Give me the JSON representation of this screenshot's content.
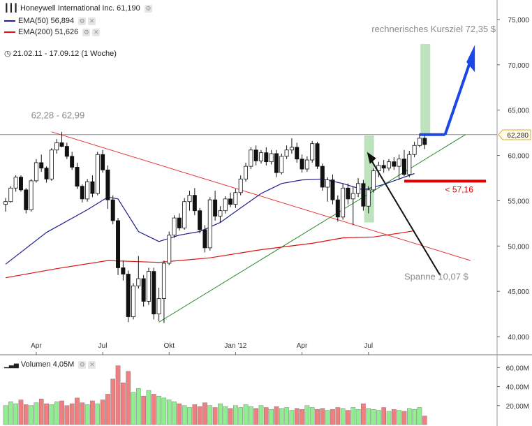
{
  "header": {
    "title": "Honeywell International Inc.",
    "last": "61,190",
    "ema50_label": "EMA(50)",
    "ema50_value": "56,894",
    "ema200_label": "EMA(200)",
    "ema200_value": "51,626",
    "range": "21.02.11 - 17.09.12 (1 Woche)",
    "volume_label": "Volumen",
    "volume_value": "4,05M"
  },
  "colors": {
    "ema50": "#1f1f8f",
    "ema200": "#dd1111",
    "trend_down": "#e83030",
    "trend_up": "#2a8a2a",
    "target_box": "#a8d8a8",
    "arrow": "#1b47e6",
    "support": "#e00000",
    "vol_up": "#90ee90",
    "vol_down": "#f08080"
  },
  "annotations": {
    "range_note": "62,28 - 62,99",
    "target_note": "rechnerisches Kursziel 72,35 $",
    "support_note": "< 57,16",
    "span_note": "Spanne 10,07 $",
    "last_price_tag": "62,280"
  },
  "chart_data": {
    "type": "candlestick",
    "ylim": [
      38,
      77
    ],
    "y_ticks": [
      "75,000",
      "70,000",
      "65,000",
      "60,000",
      "55,000",
      "50,000",
      "45,000",
      "40,000"
    ],
    "y_tick_values": [
      75,
      70,
      65,
      60,
      55,
      50,
      45,
      40
    ],
    "x_ticks": [
      "Apr",
      "Jul",
      "Okt",
      "Jan '12",
      "Apr",
      "Jul"
    ],
    "x_tick_weeks": [
      6,
      19,
      32,
      45,
      58,
      71
    ],
    "candles": [
      [
        54.6,
        55.3,
        53.8,
        54.9
      ],
      [
        54.9,
        56.6,
        54.8,
        56.4
      ],
      [
        56.4,
        57.8,
        56.0,
        57.6
      ],
      [
        57.6,
        57.8,
        56.0,
        56.2
      ],
      [
        56.2,
        56.4,
        53.6,
        54.0
      ],
      [
        54.0,
        57.4,
        53.8,
        57.2
      ],
      [
        57.2,
        59.6,
        57.0,
        59.2
      ],
      [
        59.2,
        60.1,
        58.2,
        58.6
      ],
      [
        58.6,
        58.8,
        57.0,
        57.4
      ],
      [
        57.4,
        60.8,
        57.2,
        60.6
      ],
      [
        60.6,
        61.8,
        60.2,
        61.4
      ],
      [
        61.4,
        62.6,
        60.9,
        61.0
      ],
      [
        61.0,
        61.4,
        59.6,
        59.9
      ],
      [
        59.9,
        60.4,
        58.4,
        58.7
      ],
      [
        58.7,
        59.2,
        56.3,
        56.6
      ],
      [
        56.6,
        56.8,
        54.8,
        55.2
      ],
      [
        55.2,
        57.4,
        54.9,
        57.1
      ],
      [
        57.1,
        57.8,
        55.4,
        55.8
      ],
      [
        55.8,
        60.4,
        55.6,
        60.1
      ],
      [
        60.1,
        60.6,
        58.1,
        58.4
      ],
      [
        58.4,
        58.9,
        54.1,
        55.1
      ],
      [
        55.1,
        55.6,
        52.4,
        52.8
      ],
      [
        52.8,
        53.1,
        46.8,
        47.6
      ],
      [
        47.6,
        48.4,
        46.2,
        46.9
      ],
      [
        46.9,
        47.3,
        41.6,
        42.2
      ],
      [
        42.2,
        45.9,
        41.9,
        45.6
      ],
      [
        45.6,
        48.9,
        45.3,
        46.4
      ],
      [
        46.4,
        46.8,
        43.3,
        43.9
      ],
      [
        43.9,
        47.6,
        43.5,
        47.2
      ],
      [
        47.2,
        47.6,
        41.9,
        42.5
      ],
      [
        42.5,
        45.4,
        41.7,
        44.2
      ],
      [
        44.2,
        48.4,
        41.5,
        48.1
      ],
      [
        48.1,
        51.6,
        47.9,
        51.2
      ],
      [
        51.2,
        53.4,
        50.9,
        53.1
      ],
      [
        53.1,
        53.6,
        51.7,
        52.0
      ],
      [
        52.0,
        55.3,
        51.8,
        54.9
      ],
      [
        54.9,
        56.1,
        53.9,
        55.6
      ],
      [
        55.6,
        56.4,
        53.4,
        53.9
      ],
      [
        53.9,
        54.2,
        51.4,
        51.8
      ],
      [
        51.8,
        52.3,
        49.3,
        49.8
      ],
      [
        49.8,
        55.4,
        49.5,
        55.1
      ],
      [
        55.1,
        56.1,
        52.8,
        53.3
      ],
      [
        53.3,
        54.4,
        52.6,
        53.9
      ],
      [
        53.9,
        55.5,
        53.6,
        55.2
      ],
      [
        55.2,
        55.9,
        54.3,
        54.6
      ],
      [
        54.6,
        56.3,
        54.2,
        55.9
      ],
      [
        55.9,
        57.8,
        55.6,
        57.4
      ],
      [
        57.4,
        59.2,
        57.1,
        58.8
      ],
      [
        58.8,
        60.9,
        58.5,
        60.6
      ],
      [
        60.6,
        61.1,
        58.9,
        59.4
      ],
      [
        59.4,
        60.6,
        59.1,
        60.3
      ],
      [
        60.3,
        60.9,
        58.9,
        59.3
      ],
      [
        59.3,
        60.6,
        59.0,
        60.2
      ],
      [
        60.2,
        60.6,
        57.6,
        58.1
      ],
      [
        58.1,
        60.2,
        57.9,
        59.9
      ],
      [
        59.9,
        61.1,
        59.6,
        60.6
      ],
      [
        60.6,
        61.9,
        60.2,
        60.9
      ],
      [
        60.9,
        61.4,
        59.2,
        59.6
      ],
      [
        59.6,
        60.1,
        58.1,
        58.5
      ],
      [
        58.5,
        59.9,
        58.2,
        59.5
      ],
      [
        59.5,
        61.6,
        59.2,
        61.3
      ],
      [
        61.3,
        61.5,
        58.5,
        58.8
      ],
      [
        58.8,
        59.1,
        56.1,
        56.5
      ],
      [
        56.5,
        57.6,
        54.9,
        57.3
      ],
      [
        57.3,
        57.9,
        54.6,
        55.1
      ],
      [
        55.1,
        55.6,
        52.7,
        53.2
      ],
      [
        53.2,
        56.9,
        52.9,
        56.4
      ],
      [
        56.4,
        56.9,
        54.6,
        55.2
      ],
      [
        55.2,
        56.6,
        52.3,
        55.8
      ],
      [
        55.8,
        57.5,
        55.4,
        56.9
      ],
      [
        56.9,
        57.3,
        53.9,
        54.4
      ],
      [
        54.4,
        56.6,
        53.6,
        56.2
      ],
      [
        56.2,
        58.6,
        55.9,
        58.3
      ],
      [
        58.3,
        59.3,
        57.6,
        58.9
      ],
      [
        58.9,
        59.5,
        58.1,
        58.6
      ],
      [
        58.6,
        59.6,
        58.3,
        59.3
      ],
      [
        59.3,
        59.8,
        58.4,
        58.8
      ],
      [
        58.8,
        60.1,
        57.3,
        59.6
      ],
      [
        59.6,
        60.6,
        57.7,
        57.9
      ],
      [
        57.9,
        60.5,
        57.6,
        60.1
      ],
      [
        60.1,
        61.5,
        59.8,
        61.1
      ],
      [
        61.1,
        62.4,
        60.9,
        61.9
      ],
      [
        61.9,
        62.3,
        60.7,
        61.2
      ]
    ],
    "ema50": [
      [
        0,
        48.0
      ],
      [
        8,
        51.5
      ],
      [
        16,
        54.0
      ],
      [
        20,
        55.4
      ],
      [
        22,
        55.2
      ],
      [
        26,
        51.6
      ],
      [
        30,
        50.5
      ],
      [
        34,
        51.2
      ],
      [
        38,
        51.6
      ],
      [
        42,
        52.6
      ],
      [
        46,
        54.2
      ],
      [
        50,
        55.8
      ],
      [
        54,
        56.9
      ],
      [
        58,
        57.3
      ],
      [
        62,
        57.4
      ],
      [
        66,
        56.9
      ],
      [
        70,
        56.2
      ],
      [
        74,
        56.8
      ],
      [
        80,
        58.0
      ]
    ],
    "ema200": [
      [
        0,
        46.5
      ],
      [
        10,
        47.5
      ],
      [
        20,
        48.4
      ],
      [
        30,
        48.2
      ],
      [
        40,
        48.7
      ],
      [
        50,
        49.6
      ],
      [
        60,
        50.3
      ],
      [
        66,
        50.9
      ],
      [
        72,
        51.0
      ],
      [
        78,
        51.5
      ],
      [
        80,
        51.7
      ]
    ],
    "trend_down": [
      [
        9,
        62.6
      ],
      [
        91,
        48.4
      ]
    ],
    "trend_up": [
      [
        30,
        41.6
      ],
      [
        90,
        62.3
      ]
    ],
    "resistance": 62.3,
    "target_boxes": [
      [
        71,
        52.6,
        62.2
      ],
      [
        82,
        62.3,
        72.3
      ]
    ],
    "volume": {
      "ylim": [
        0,
        72
      ],
      "y_ticks": [
        "60,00M",
        "40,00M",
        "20,00M"
      ],
      "y_tick_values": [
        60,
        40,
        20
      ],
      "values": [
        20,
        24,
        22,
        26,
        21,
        20,
        23,
        27,
        22,
        21,
        24,
        25,
        20,
        22,
        28,
        23,
        21,
        25,
        22,
        26,
        32,
        48,
        62,
        44,
        56,
        34,
        38,
        30,
        36,
        32,
        30,
        28,
        26,
        24,
        22,
        20,
        18,
        21,
        19,
        23,
        20,
        18,
        22,
        19,
        17,
        20,
        18,
        21,
        19,
        17,
        20,
        18,
        16,
        19,
        17,
        18,
        15,
        17,
        16,
        20,
        18,
        16,
        17,
        15,
        16,
        18,
        17,
        15,
        18,
        16,
        22,
        17,
        16,
        15,
        18,
        14,
        16,
        15,
        14,
        17,
        16,
        18,
        9
      ]
    }
  }
}
